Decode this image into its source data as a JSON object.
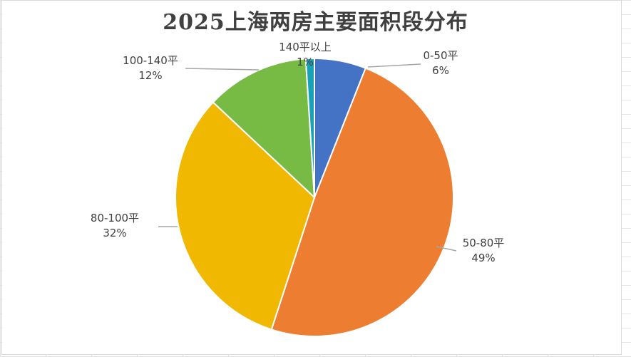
{
  "chart_data": {
    "type": "pie",
    "title": "2025上海两房主要面积段分布",
    "categories": [
      "0-50平",
      "50-80平",
      "80-100平",
      "100-140平",
      "140平以上"
    ],
    "values": [
      6,
      49,
      32,
      12,
      1
    ],
    "value_labels": [
      "6%",
      "49%",
      "32%",
      "12%",
      "1%"
    ],
    "colors": [
      "#4472C4",
      "#ED7D31",
      "#F0B800",
      "#77BB44",
      "#17A2B8"
    ],
    "start": "12 o'clock",
    "direction": "clockwise",
    "data_labels": "category and percentage with leader lines",
    "legend": "none"
  }
}
